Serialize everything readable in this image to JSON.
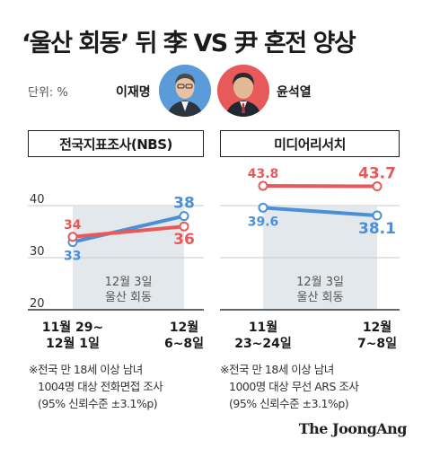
{
  "title": "‘울산 회동’ 뒤 李 VS 尹 혼전 양상",
  "unit": "단위: %",
  "candidates": [
    {
      "name": "이재명",
      "color": "#4a8fd8",
      "icon": "lee-portrait"
    },
    {
      "name": "윤석열",
      "color": "#e85a5a",
      "icon": "yoon-portrait"
    }
  ],
  "chart_data": [
    {
      "type": "line",
      "title": "전국지표조사(NBS)",
      "categories": [
        "11월 29~\n12월 1일",
        "12월\n6~8일"
      ],
      "series": [
        {
          "name": "이재명",
          "values": [
            33,
            38
          ],
          "color": "#4a8fd8"
        },
        {
          "name": "윤석열",
          "values": [
            34,
            36
          ],
          "color": "#e85a5a"
        }
      ],
      "yticks": [
        20,
        30,
        40
      ],
      "ylim": [
        20,
        45
      ],
      "grid": true,
      "annotation": "12월 3일\n울산 회동",
      "note": [
        "※전국 만 18세 이상 남녀",
        "1004명 대상 전화면접 조사",
        "(95% 신뢰수준 ±3.1%p)"
      ]
    },
    {
      "type": "line",
      "title": "미디어리서치",
      "categories": [
        "11월\n23~24일",
        "12월\n7~8일"
      ],
      "series": [
        {
          "name": "이재명",
          "values": [
            39.6,
            38.1
          ],
          "color": "#4a8fd8"
        },
        {
          "name": "윤석열",
          "values": [
            43.8,
            43.7
          ],
          "color": "#e85a5a"
        }
      ],
      "yticks": [],
      "ylim": [
        20,
        45
      ],
      "grid": true,
      "annotation": "12월 3일\n울산 회동",
      "note": [
        "※전국 만 18세 이상 남녀",
        "1000명 대상 무선 ARS 조사",
        "(95% 신뢰수준 ±3.1%p)"
      ]
    }
  ],
  "footer": {
    "brand": "The JoongAng"
  }
}
